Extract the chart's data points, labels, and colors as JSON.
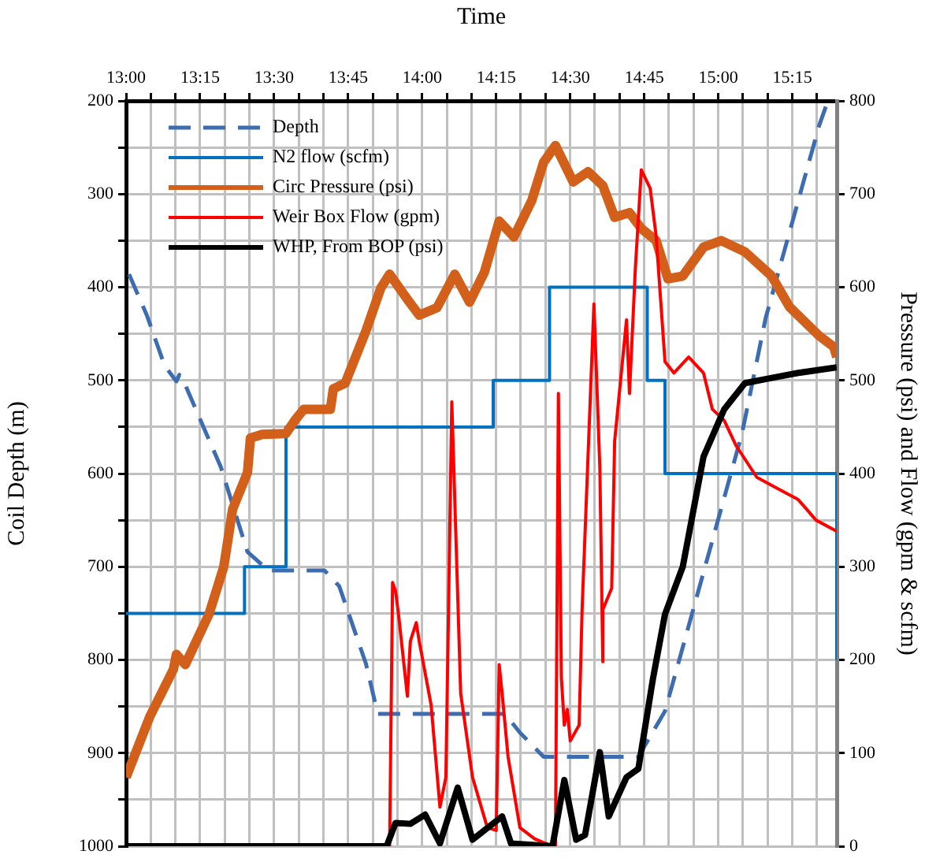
{
  "chart_data": {
    "type": "line",
    "xlabel": "Time",
    "ylabel": "Coil Depth (m)",
    "y2label": "Pressure (psi) and Flow (gpm & scfm)",
    "xlim": [
      13,
      15.4
    ],
    "xticks": [
      {
        "value": 13,
        "label": "13:00"
      },
      {
        "value": 13.083,
        "label": null
      },
      {
        "value": 13.167,
        "label": null
      },
      {
        "value": 13.25,
        "label": "13:15"
      },
      {
        "value": 13.333,
        "label": null
      },
      {
        "value": 13.417,
        "label": null
      },
      {
        "value": 13.5,
        "label": "13:30"
      },
      {
        "value": 13.583,
        "label": null
      },
      {
        "value": 13.667,
        "label": null
      },
      {
        "value": 13.75,
        "label": "13:45"
      },
      {
        "value": 13.833,
        "label": null
      },
      {
        "value": 13.917,
        "label": null
      },
      {
        "value": 14,
        "label": "14:00"
      },
      {
        "value": 14.083,
        "label": null
      },
      {
        "value": 14.167,
        "label": null
      },
      {
        "value": 14.25,
        "label": "14:15"
      },
      {
        "value": 14.333,
        "label": null
      },
      {
        "value": 14.417,
        "label": null
      },
      {
        "value": 14.5,
        "label": "14:30"
      },
      {
        "value": 14.583,
        "label": null
      },
      {
        "value": 14.667,
        "label": null
      },
      {
        "value": 14.75,
        "label": "14:45"
      },
      {
        "value": 14.833,
        "label": null
      },
      {
        "value": 14.917,
        "label": null
      },
      {
        "value": 15,
        "label": "15:00"
      },
      {
        "value": 15.083,
        "label": null
      },
      {
        "value": 15.167,
        "label": null
      },
      {
        "value": 15.25,
        "label": "15:15"
      },
      {
        "value": 15.333,
        "label": null
      }
    ],
    "ylim": [
      1000,
      200
    ],
    "yticks": [
      200,
      {
        "value": 250,
        "label": null
      },
      300,
      {
        "value": 350,
        "label": null
      },
      400,
      {
        "value": 450,
        "label": null
      },
      500,
      {
        "value": 550,
        "label": null
      },
      600,
      {
        "value": 650,
        "label": null
      },
      700,
      {
        "value": 750,
        "label": null
      },
      800,
      {
        "value": 850,
        "label": null
      },
      900,
      {
        "value": 950,
        "label": null
      },
      1000
    ],
    "y2lim": [
      0,
      800
    ],
    "y2ticks": [
      0,
      100,
      200,
      300,
      400,
      500,
      600,
      700,
      800
    ],
    "grid": true,
    "legend": "top left",
    "series": [
      {
        "name": "Depth",
        "type": "line",
        "color": "#3d6db0",
        "line_style": "dashed",
        "x": [
          13.01,
          13.07,
          13.13,
          13.17,
          13.18,
          13.2,
          13.32,
          13.41,
          13.48,
          13.67,
          13.72,
          13.81,
          13.85,
          14.28,
          14.33,
          14.41,
          14.73,
          14.82,
          14.91,
          15.08,
          15.16,
          15.34,
          15.37
        ],
        "values": [
          386,
          430,
          484,
          501,
          494,
          505,
          593,
          684,
          704,
          704,
          721,
          804,
          858,
          858,
          878,
          904,
          904,
          855,
          752,
          557,
          433,
          227,
          200
        ]
      },
      {
        "name": "N2 flow (scfm)",
        "type": "step",
        "axis": "y2",
        "color": "#0070c0",
        "x": [
          13,
          13.4,
          13.54,
          14.24,
          14.43,
          14.76,
          14.82,
          15.4,
          15.4
        ],
        "values": [
          250,
          300,
          450,
          500,
          600,
          500,
          400,
          400,
          200
        ]
      },
      {
        "name": "Circ Pressure (psi)",
        "type": "line",
        "axis": "y2",
        "color": "#d2601a",
        "x": [
          13,
          13.08,
          13.16,
          13.17,
          13.2,
          13.28,
          13.33,
          13.36,
          13.41,
          13.42,
          13.46,
          13.54,
          13.57,
          13.6,
          13.69,
          13.7,
          13.74,
          13.81,
          13.86,
          13.89,
          13.95,
          13.99,
          14.05,
          14.11,
          14.16,
          14.21,
          14.26,
          14.31,
          14.37,
          14.41,
          14.45,
          14.51,
          14.56,
          14.61,
          14.65,
          14.7,
          14.74,
          14.79,
          14.83,
          14.88,
          14.95,
          15.01,
          15.09,
          15.18,
          15.24,
          15.34,
          15.39,
          15.4
        ],
        "values": [
          74,
          139,
          190,
          206,
          195,
          249,
          300,
          362,
          401,
          438,
          442,
          443,
          457,
          469,
          469,
          491,
          497,
          553,
          599,
          614,
          587,
          570,
          578,
          614,
          584,
          616,
          671,
          654,
          693,
          734,
          752,
          713,
          724,
          709,
          675,
          680,
          663,
          650,
          609,
          612,
          643,
          650,
          638,
          612,
          579,
          548,
          536,
          525
        ]
      },
      {
        "name": "Weir Box Flow (gpm)",
        "type": "line",
        "axis": "y2",
        "color": "#ff0000",
        "x": [
          13,
          13.89,
          13.9,
          13.91,
          13.92,
          13.95,
          13.96,
          13.98,
          13.99,
          14.03,
          14.06,
          14.08,
          14.1,
          14.13,
          14.17,
          14.22,
          14.25,
          14.26,
          14.27,
          14.29,
          14.33,
          14.38,
          14.44,
          14.45,
          14.46,
          14.47,
          14.48,
          14.49,
          14.5,
          14.53,
          14.54,
          14.58,
          14.6,
          14.61,
          14.61,
          14.64,
          14.65,
          14.69,
          14.7,
          14.72,
          14.74,
          14.77,
          14.79,
          14.82,
          14.85,
          14.9,
          14.95,
          14.98,
          15.02,
          15.06,
          15.13,
          15.2,
          15.27,
          15.33,
          15.4
        ],
        "values": [
          0,
          0,
          283,
          274,
          249,
          161,
          220,
          240,
          220,
          152,
          42,
          74,
          477,
          164,
          74,
          20,
          17,
          195,
          164,
          96,
          20,
          8,
          0,
          0,
          486,
          181,
          130,
          147,
          113,
          130,
          254,
          582,
          406,
          198,
          254,
          277,
          435,
          565,
          486,
          621,
          726,
          706,
          655,
          520,
          508,
          525,
          508,
          469,
          457,
          430,
          396,
          384,
          372,
          350,
          338
        ]
      },
      {
        "name": "WHP, From BOP (psi)",
        "type": "line",
        "axis": "y2",
        "color": "#000000",
        "x": [
          13,
          13.88,
          13.91,
          13.96,
          14.01,
          14.06,
          14.12,
          14.17,
          14.27,
          14.3,
          14.44,
          14.48,
          14.52,
          14.55,
          14.6,
          14.63,
          14.69,
          14.73,
          14.78,
          14.82,
          14.88,
          14.95,
          15.02,
          15.09,
          15.17,
          15.27,
          15.4
        ],
        "values": [
          0,
          0,
          25,
          24,
          34,
          3,
          63,
          7,
          32,
          3,
          0,
          71,
          7,
          12,
          101,
          32,
          74,
          83,
          181,
          249,
          300,
          418,
          469,
          497,
          502,
          508,
          514
        ]
      }
    ]
  }
}
